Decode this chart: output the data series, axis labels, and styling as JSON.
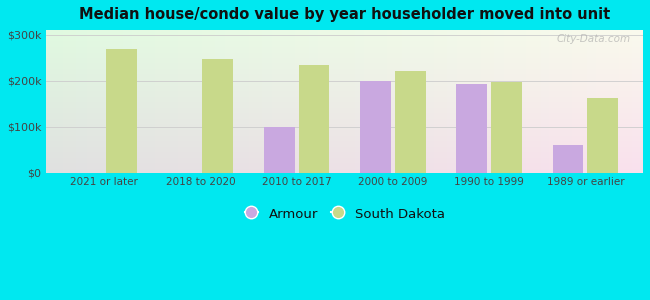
{
  "title": "Median house/condo value by year householder moved into unit",
  "categories": [
    "2021 or later",
    "2018 to 2020",
    "2010 to 2017",
    "2000 to 2009",
    "1990 to 1999",
    "1989 or earlier"
  ],
  "armour_values": [
    null,
    null,
    100000,
    200000,
    193000,
    60000
  ],
  "south_dakota_values": [
    268000,
    248000,
    233000,
    220000,
    197000,
    163000
  ],
  "armour_color": "#c9a8e0",
  "south_dakota_color": "#c8d98a",
  "background_outer": "#00e8f0",
  "ylabel_ticks": [
    "$0",
    "$100k",
    "$200k",
    "$300k"
  ],
  "ytick_values": [
    0,
    100000,
    200000,
    300000
  ],
  "ylim": [
    0,
    310000
  ],
  "bar_width": 0.32,
  "legend_armour": "Armour",
  "legend_sd": "South Dakota",
  "watermark": "City-Data.com"
}
